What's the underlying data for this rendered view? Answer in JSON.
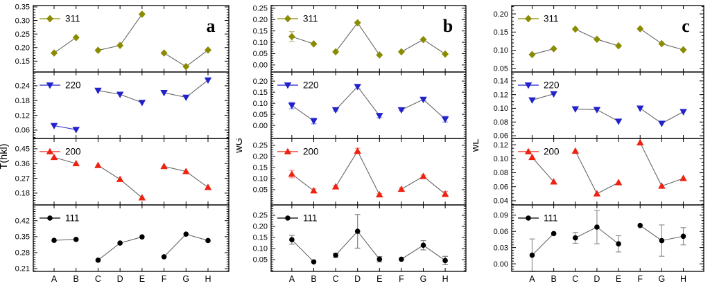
{
  "figure": {
    "background": "#ffffff",
    "line_color": "#666666",
    "axis_color": "#000000",
    "text_color": "#000000",
    "categories": [
      "A",
      "B",
      "C",
      "D",
      "E",
      "F",
      "G",
      "H"
    ],
    "groups": [
      [
        0,
        1
      ],
      [
        2,
        3,
        4
      ],
      [
        5,
        6,
        7
      ]
    ]
  },
  "chart_data": [
    {
      "type": "line",
      "panel_letter": "a",
      "ylabel": "T(hkl)",
      "categories": [
        "A",
        "B",
        "C",
        "D",
        "E",
        "F",
        "G",
        "H"
      ],
      "subplots": [
        {
          "label": "311",
          "marker": "diamond",
          "color": "#8b8b00",
          "error_color": "#c9b97a",
          "ylim": [
            0.11,
            0.355
          ],
          "yticks": [
            0.15,
            0.2,
            0.25,
            0.3,
            0.35
          ],
          "minor_div": 5,
          "values": [
            0.18,
            0.237,
            0.19,
            0.208,
            0.323,
            0.18,
            0.13,
            0.191
          ],
          "errors": [
            0,
            0,
            0,
            0,
            0,
            0,
            0,
            0
          ]
        },
        {
          "label": "220",
          "marker": "triangle-down",
          "color": "#2222cc",
          "error_color": "#8c8cff",
          "ylim": [
            0.026,
            0.296
          ],
          "yticks": [
            0.06,
            0.12,
            0.18,
            0.24
          ],
          "minor_div": 6,
          "values": [
            0.078,
            0.062,
            0.221,
            0.205,
            0.172,
            0.212,
            0.193,
            0.263
          ],
          "errors": [
            0,
            0,
            0,
            0,
            0,
            0,
            0,
            0
          ],
          "group_line_colors": [
            "#3333cc",
            "#666666",
            "#666666"
          ]
        },
        {
          "label": "200",
          "marker": "triangle-up",
          "color": "#ee2211",
          "error_color": "#ff9090",
          "ylim": [
            0.108,
            0.513
          ],
          "yticks": [
            0.18,
            0.27,
            0.36,
            0.45
          ],
          "minor_div": 6,
          "values": [
            0.398,
            0.36,
            0.349,
            0.264,
            0.152,
            0.343,
            0.312,
            0.215
          ],
          "errors": [
            0,
            0,
            0,
            0,
            0,
            0,
            0,
            0
          ]
        },
        {
          "label": "111",
          "marker": "circle",
          "color": "#000000",
          "error_color": "#808080",
          "ylim": [
            0.198,
            0.489
          ],
          "yticks": [
            0.21,
            0.28,
            0.35,
            0.42
          ],
          "minor_div": 7,
          "values": [
            0.334,
            0.338,
            0.247,
            0.322,
            0.349,
            0.262,
            0.361,
            0.333
          ],
          "errors": [
            0,
            0,
            0,
            0,
            0,
            0,
            0,
            0
          ]
        }
      ]
    },
    {
      "type": "line",
      "panel_letter": "b",
      "ylabel": "wG",
      "categories": [
        "A",
        "B",
        "C",
        "D",
        "E",
        "F",
        "G",
        "H"
      ],
      "subplots": [
        {
          "label": "311",
          "marker": "diamond",
          "color": "#8b8b00",
          "error_color": "#c9b97a",
          "ylim": [
            -0.031,
            0.262
          ],
          "yticks": [
            0.0,
            0.05,
            0.1,
            0.15,
            0.2,
            0.25
          ],
          "minor_div": 5,
          "values": [
            0.125,
            0.093,
            0.058,
            0.186,
            0.044,
            0.058,
            0.112,
            0.048
          ],
          "errors": [
            0.022,
            0,
            0,
            0,
            0,
            0,
            0,
            0
          ]
        },
        {
          "label": "220",
          "marker": "triangle-down",
          "color": "#2222cc",
          "error_color": "#8c8cff",
          "ylim": [
            -0.059,
            0.241
          ],
          "yticks": [
            0.0,
            0.05,
            0.1,
            0.15,
            0.2
          ],
          "minor_div": 5,
          "values": [
            0.09,
            0.02,
            0.07,
            0.175,
            0.044,
            0.07,
            0.117,
            0.028
          ],
          "errors": [
            0.015,
            0.013,
            0.005,
            0.009,
            0.009,
            0.004,
            0.005,
            0.013
          ]
        },
        {
          "label": "200",
          "marker": "triangle-up",
          "color": "#ee2211",
          "error_color": "#ff9090",
          "ylim": [
            -0.019,
            0.281
          ],
          "yticks": [
            0.05,
            0.1,
            0.15,
            0.2,
            0.25
          ],
          "minor_div": 5,
          "values": [
            0.12,
            0.045,
            0.063,
            0.224,
            0.027,
            0.052,
            0.11,
            0.03
          ],
          "errors": [
            0.017,
            0.009,
            0.006,
            0.013,
            0.005,
            0.007,
            0.006,
            0.012
          ]
        },
        {
          "label": "111",
          "marker": "circle",
          "color": "#000000",
          "error_color": "#808080",
          "ylim": [
            -0.003,
            0.297
          ],
          "yticks": [
            0.05,
            0.1,
            0.15,
            0.2,
            0.25
          ],
          "minor_div": 5,
          "values": [
            0.14,
            0.04,
            0.07,
            0.178,
            0.052,
            0.052,
            0.115,
            0.046
          ],
          "errors": [
            0.02,
            0,
            0.009,
            0.076,
            0.012,
            0,
            0.021,
            0.019
          ]
        }
      ]
    },
    {
      "type": "line",
      "panel_letter": "c",
      "ylabel": "wL",
      "categories": [
        "A",
        "B",
        "C",
        "D",
        "E",
        "F",
        "G",
        "H"
      ],
      "subplots": [
        {
          "label": "311",
          "marker": "diamond",
          "color": "#8b8b00",
          "error_color": "#c9b97a",
          "ylim": [
            0.04,
            0.223
          ],
          "yticks": [
            0.05,
            0.1,
            0.15,
            0.2
          ],
          "minor_div": 5,
          "values": [
            0.088,
            0.104,
            0.158,
            0.13,
            0.112,
            0.159,
            0.118,
            0.101
          ],
          "errors": [
            0,
            0,
            0,
            0,
            0,
            0,
            0,
            0
          ]
        },
        {
          "label": "220",
          "marker": "triangle-down",
          "color": "#2222cc",
          "error_color": "#8c8cff",
          "ylim": [
            0.056,
            0.153
          ],
          "yticks": [
            0.06,
            0.08,
            0.1,
            0.12,
            0.14
          ],
          "minor_div": 4,
          "values": [
            0.112,
            0.121,
            0.099,
            0.098,
            0.081,
            0.1,
            0.078,
            0.095
          ],
          "errors": [
            0,
            0,
            0,
            0,
            0,
            0,
            0,
            0
          ]
        },
        {
          "label": "200",
          "marker": "triangle-up",
          "color": "#ee2211",
          "error_color": "#ff9090",
          "ylim": [
            0.034,
            0.129
          ],
          "yticks": [
            0.04,
            0.06,
            0.08,
            0.1,
            0.12
          ],
          "minor_div": 4,
          "values": [
            0.102,
            0.067,
            0.111,
            0.05,
            0.066,
            0.123,
            0.061,
            0.072
          ],
          "errors": [
            0,
            0,
            0,
            0,
            0,
            0,
            0,
            0
          ]
        },
        {
          "label": "111",
          "marker": "circle",
          "color": "#000000",
          "error_color": "#909090",
          "ylim": [
            -0.014,
            0.109
          ],
          "yticks": [
            0.0,
            0.03,
            0.06,
            0.09
          ],
          "minor_div": 6,
          "values": [
            0.016,
            0.056,
            0.048,
            0.068,
            0.037,
            0.071,
            0.043,
            0.051
          ],
          "errors": [
            0.03,
            0,
            0.01,
            0.031,
            0.015,
            0,
            0.029,
            0.016
          ]
        }
      ]
    }
  ]
}
